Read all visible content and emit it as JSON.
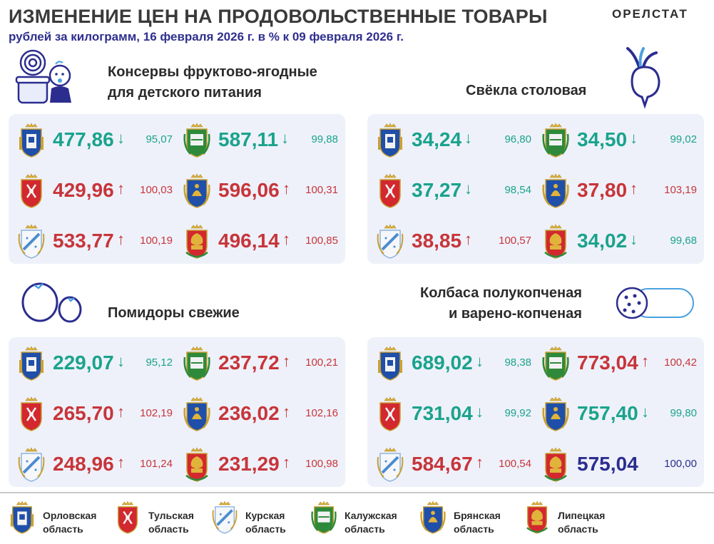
{
  "header": {
    "title": "ИЗМЕНЕНИЕ ЦЕН НА ПРОДОВОЛЬСТВЕННЫЕ ТОВАРЫ",
    "subtitle": "рублей за килограмм, 16 февраля 2026 г. в % к 09 февраля 2026 г.",
    "brand": "ОРЕЛСТАТ"
  },
  "colors": {
    "down": "#1aa38c",
    "up": "#c7353a",
    "same": "#2b2d8f",
    "panel": "#eef1fa",
    "navy": "#2b2d8f"
  },
  "products": [
    {
      "title_line1": "Консервы фруктово-ягодные",
      "title_line2": "для детского питания",
      "icon": "baby-food-jar-icon",
      "cells": [
        {
          "region": "orel",
          "price": "477,86",
          "arrow": "↓",
          "pct": "95,07",
          "trend": "down"
        },
        {
          "region": "kaluga",
          "price": "587,11",
          "arrow": "↓",
          "pct": "99,88",
          "trend": "down"
        },
        {
          "region": "tula",
          "price": "429,96",
          "arrow": "↑",
          "pct": "100,03",
          "trend": "up"
        },
        {
          "region": "bryansk",
          "price": "596,06",
          "arrow": "↑",
          "pct": "100,31",
          "trend": "up"
        },
        {
          "region": "kursk",
          "price": "533,77",
          "arrow": "↑",
          "pct": "100,19",
          "trend": "up"
        },
        {
          "region": "lipetsk",
          "price": "496,14",
          "arrow": "↑",
          "pct": "100,85",
          "trend": "up"
        }
      ]
    },
    {
      "title_line1": "Свёкла столовая",
      "title_line2": "",
      "icon": "beet-icon",
      "cells": [
        {
          "region": "orel",
          "price": "34,24",
          "arrow": "↓",
          "pct": "96,80",
          "trend": "down"
        },
        {
          "region": "kaluga",
          "price": "34,50",
          "arrow": "↓",
          "pct": "99,02",
          "trend": "down"
        },
        {
          "region": "tula",
          "price": "37,27",
          "arrow": "↓",
          "pct": "98,54",
          "trend": "down"
        },
        {
          "region": "bryansk",
          "price": "37,80",
          "arrow": "↑",
          "pct": "103,19",
          "trend": "up"
        },
        {
          "region": "kursk",
          "price": "38,85",
          "arrow": "↑",
          "pct": "100,57",
          "trend": "up"
        },
        {
          "region": "lipetsk",
          "price": "34,02",
          "arrow": "↓",
          "pct": "99,68",
          "trend": "down"
        }
      ]
    },
    {
      "title_line1": "Помидоры свежие",
      "title_line2": "",
      "icon": "tomato-icon",
      "cells": [
        {
          "region": "orel",
          "price": "229,07",
          "arrow": "↓",
          "pct": "95,12",
          "trend": "down"
        },
        {
          "region": "kaluga",
          "price": "237,72",
          "arrow": "↑",
          "pct": "100,21",
          "trend": "up"
        },
        {
          "region": "tula",
          "price": "265,70",
          "arrow": "↑",
          "pct": "102,19",
          "trend": "up"
        },
        {
          "region": "bryansk",
          "price": "236,02",
          "arrow": "↑",
          "pct": "102,16",
          "trend": "up"
        },
        {
          "region": "kursk",
          "price": "248,96",
          "arrow": "↑",
          "pct": "101,24",
          "trend": "up"
        },
        {
          "region": "lipetsk",
          "price": "231,29",
          "arrow": "↑",
          "pct": "100,98",
          "trend": "up"
        }
      ]
    },
    {
      "title_line1": "Колбаса полукопченая",
      "title_line2": "и варено-копченая",
      "icon": "sausage-icon",
      "cells": [
        {
          "region": "orel",
          "price": "689,02",
          "arrow": "↓",
          "pct": "98,38",
          "trend": "down"
        },
        {
          "region": "kaluga",
          "price": "773,04",
          "arrow": "↑",
          "pct": "100,42",
          "trend": "up"
        },
        {
          "region": "tula",
          "price": "731,04",
          "arrow": "↓",
          "pct": "99,92",
          "trend": "down"
        },
        {
          "region": "bryansk",
          "price": "757,40",
          "arrow": "↓",
          "pct": "99,80",
          "trend": "down"
        },
        {
          "region": "kursk",
          "price": "584,67",
          "arrow": "↑",
          "pct": "100,54",
          "trend": "up"
        },
        {
          "region": "lipetsk",
          "price": "575,04",
          "arrow": "",
          "pct": "100,00",
          "trend": "same"
        }
      ]
    }
  ],
  "legend": [
    {
      "region": "orel",
      "line1": "Орловская",
      "line2": "область"
    },
    {
      "region": "tula",
      "line1": "Тульская",
      "line2": "область"
    },
    {
      "region": "kursk",
      "line1": "Курская",
      "line2": "область"
    },
    {
      "region": "kaluga",
      "line1": "Калужская",
      "line2": "область"
    },
    {
      "region": "bryansk",
      "line1": "Брянская",
      "line2": "область"
    },
    {
      "region": "lipetsk",
      "line1": "Липецкая",
      "line2": "область"
    }
  ]
}
